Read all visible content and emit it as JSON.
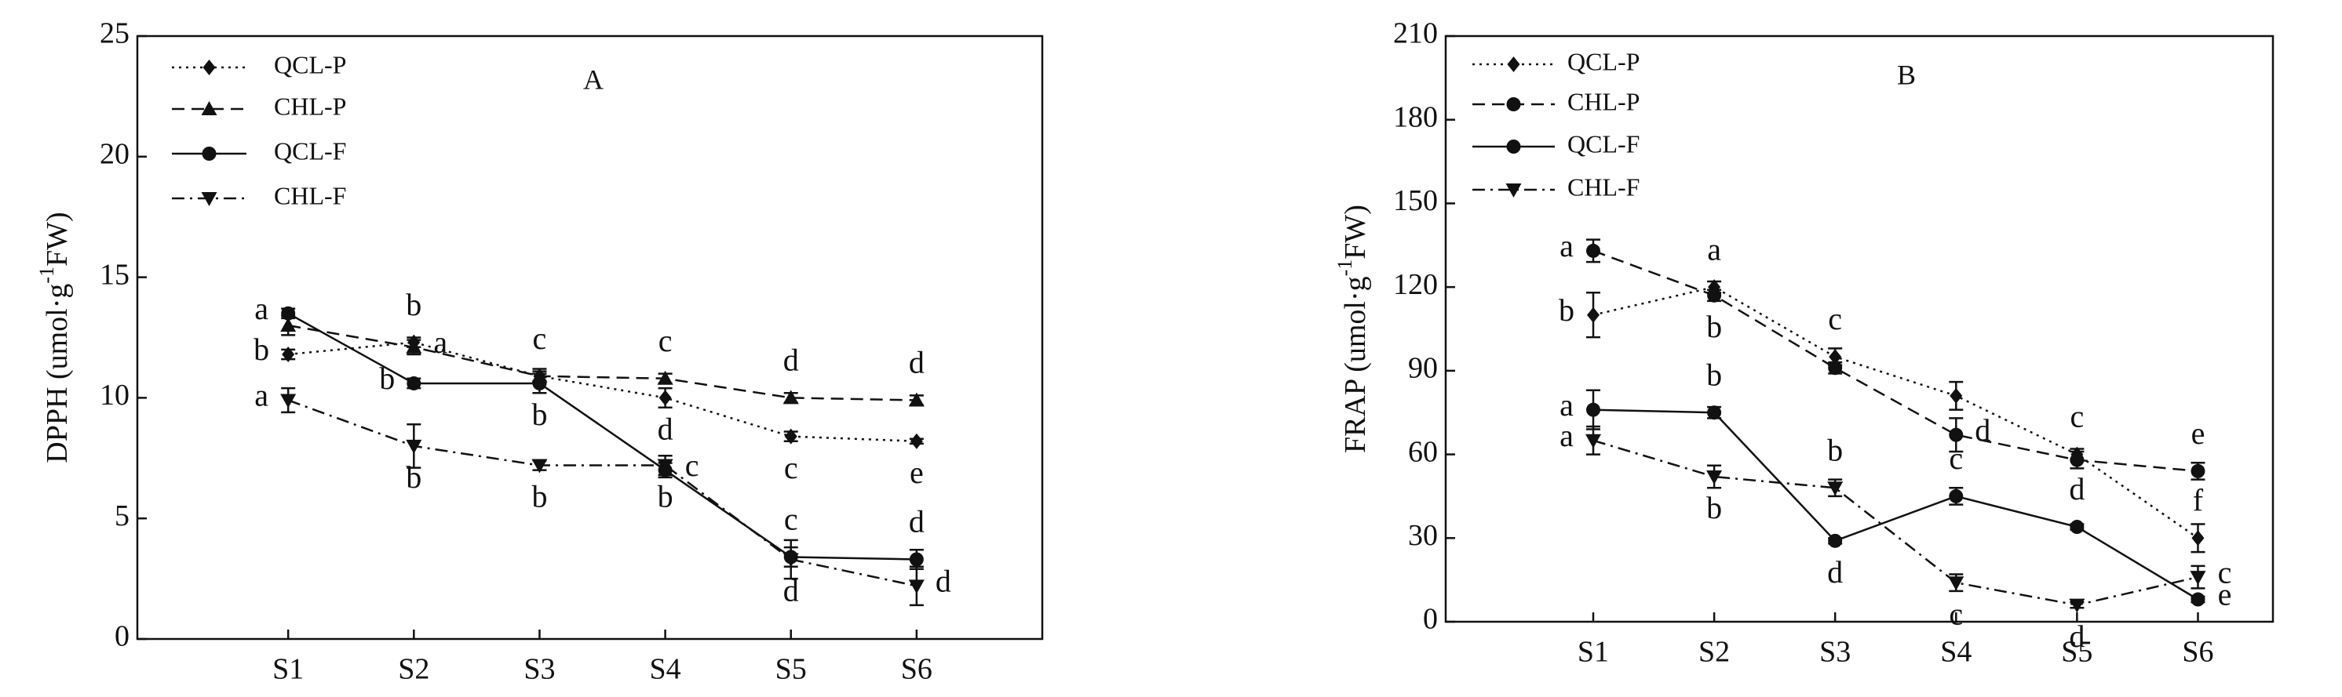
{
  "chart_data": [
    {
      "type": "line",
      "panel_label": "A",
      "ylabel": "DPPH (umol·g",
      "ylabel_sup": "-1",
      "ylabel_end": "FW)",
      "categories": [
        "S1",
        "S2",
        "S3",
        "S4",
        "S5",
        "S6"
      ],
      "ylim": [
        0,
        25
      ],
      "yticks": [
        0,
        5,
        10,
        15,
        20,
        25
      ],
      "series": [
        {
          "name": "QCL-P",
          "color": "#111111",
          "marker": "diamond",
          "dash": "dotted",
          "values": [
            11.8,
            12.3,
            10.9,
            10.0,
            8.4,
            8.2
          ],
          "errors": [
            0.2,
            0.2,
            0.2,
            0.4,
            0.2,
            0.1
          ],
          "letters": [
            "b",
            "b",
            "c",
            "d",
            "c",
            "e"
          ]
        },
        {
          "name": "CHL-P",
          "color": "#111111",
          "marker": "triangle",
          "dash": "dashed",
          "values": [
            13.0,
            12.1,
            10.9,
            10.8,
            10.0,
            9.9
          ],
          "errors": [
            0.4,
            0.3,
            0.3,
            0.2,
            0.2,
            0.2
          ],
          "letters": [
            null,
            "a",
            null,
            "c",
            "d",
            "d"
          ]
        },
        {
          "name": "QCL-F",
          "color": "#111111",
          "marker": "circle",
          "dash": "solid",
          "values": [
            13.5,
            10.6,
            10.6,
            7.0,
            3.4,
            3.3
          ],
          "errors": [
            0.2,
            0.2,
            0.4,
            0.3,
            0.4,
            0.4
          ],
          "letters": [
            "a",
            "b",
            "b",
            "c",
            "c",
            "d"
          ]
        },
        {
          "name": "CHL-F",
          "color": "#111111",
          "marker": "triangledown",
          "dash": "dashdot",
          "values": [
            9.9,
            8.0,
            7.2,
            7.2,
            3.3,
            2.2
          ],
          "errors": [
            0.5,
            0.9,
            0.2,
            0.4,
            0.8,
            0.8
          ],
          "letters": [
            "a",
            "b",
            "b",
            "b",
            "d",
            "d"
          ]
        }
      ]
    },
    {
      "type": "line",
      "panel_label": "B",
      "ylabel": "FRAP (umol·g",
      "ylabel_sup": "-1",
      "ylabel_end": "FW)",
      "categories": [
        "S1",
        "S2",
        "S3",
        "S4",
        "S5",
        "S6"
      ],
      "ylim": [
        0,
        210
      ],
      "yticks": [
        0,
        30,
        60,
        90,
        120,
        150,
        180,
        210
      ],
      "series": [
        {
          "name": "QCL-P",
          "color": "#111111",
          "marker": "diamond",
          "dash": "dotted",
          "values": [
            110,
            120,
            95,
            81,
            60,
            30
          ],
          "errors": [
            8,
            2,
            3,
            5,
            2,
            5
          ],
          "letters": [
            "b",
            "a",
            "c",
            null,
            "c",
            "f"
          ]
        },
        {
          "name": "CHL-P",
          "color": "#111111",
          "marker": "circle",
          "dash": "dashed",
          "values": [
            133,
            117,
            91,
            67,
            58,
            54
          ],
          "errors": [
            4,
            2,
            2,
            6,
            3,
            3
          ],
          "letters": [
            "a",
            "b",
            null,
            "d",
            null,
            "e"
          ]
        },
        {
          "name": "QCL-F",
          "color": "#111111",
          "marker": "circle",
          "dash": "solid",
          "values": [
            76,
            75,
            29,
            45,
            34,
            8
          ],
          "errors": [
            7,
            2,
            1,
            3,
            1,
            1
          ],
          "letters": [
            "a",
            "b",
            "d",
            "c",
            "d",
            "e"
          ]
        },
        {
          "name": "CHL-F",
          "color": "#111111",
          "marker": "triangledown",
          "dash": "dashdot",
          "values": [
            65,
            52,
            48,
            14,
            6,
            16
          ],
          "errors": [
            5,
            4,
            3,
            3,
            1,
            4
          ],
          "letters": [
            "a",
            "b",
            "b",
            "c",
            "d",
            "c"
          ]
        }
      ]
    }
  ]
}
